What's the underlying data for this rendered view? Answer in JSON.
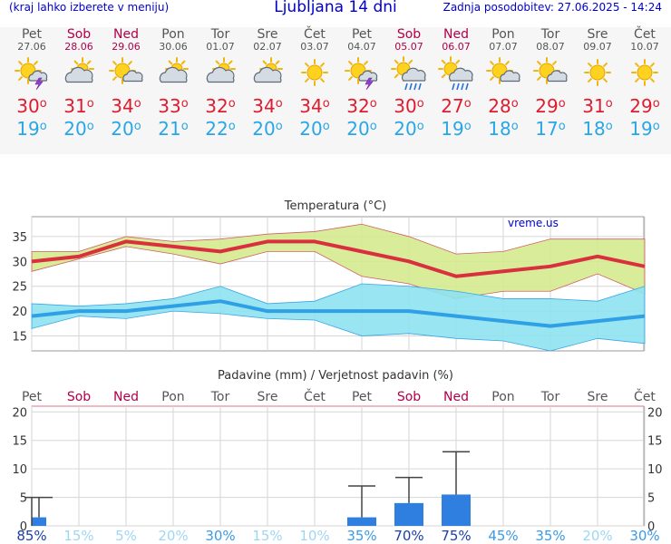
{
  "header": {
    "hint": "(kraj lahko izberete v meniju)",
    "title": "Ljubljana 14 dni",
    "updated": "Zadnja posodobitev: 27.06.2025 - 14:24"
  },
  "colors": {
    "weekday": "#555555",
    "weekend": "#b0004a",
    "tmax": "#e01b2e",
    "tmin": "#29a6e6",
    "header_text": "#0000cc",
    "band_max_fill": "#d4ea8e",
    "band_min_fill": "#8ee2ef",
    "precip_bar": "#2f7fe0"
  },
  "days": [
    {
      "name": "Pet",
      "date": "27.06",
      "weekend": false,
      "icon": "sun-cloud-storm-icon",
      "tmax": "30",
      "tmin": "19"
    },
    {
      "name": "Sob",
      "date": "28.06",
      "weekend": true,
      "icon": "cloud-sun-icon",
      "tmax": "31",
      "tmin": "20"
    },
    {
      "name": "Ned",
      "date": "29.06",
      "weekend": true,
      "icon": "sun-cloud-icon",
      "tmax": "34",
      "tmin": "20"
    },
    {
      "name": "Pon",
      "date": "30.06",
      "weekend": false,
      "icon": "cloud-sun-icon",
      "tmax": "33",
      "tmin": "21"
    },
    {
      "name": "Tor",
      "date": "01.07",
      "weekend": false,
      "icon": "cloud-sun-icon",
      "tmax": "32",
      "tmin": "22"
    },
    {
      "name": "Sre",
      "date": "02.07",
      "weekend": false,
      "icon": "cloud-sun-icon",
      "tmax": "34",
      "tmin": "20"
    },
    {
      "name": "Čet",
      "date": "03.07",
      "weekend": false,
      "icon": "sun-icon",
      "tmax": "34",
      "tmin": "20"
    },
    {
      "name": "Pet",
      "date": "04.07",
      "weekend": false,
      "icon": "sun-cloud-storm-icon",
      "tmax": "32",
      "tmin": "20"
    },
    {
      "name": "Sob",
      "date": "05.07",
      "weekend": true,
      "icon": "sun-cloud-rain-icon",
      "tmax": "30",
      "tmin": "20"
    },
    {
      "name": "Ned",
      "date": "06.07",
      "weekend": true,
      "icon": "sun-cloud-rain-icon",
      "tmax": "27",
      "tmin": "19"
    },
    {
      "name": "Pon",
      "date": "07.07",
      "weekend": false,
      "icon": "sun-cloud-icon",
      "tmax": "28",
      "tmin": "18"
    },
    {
      "name": "Tor",
      "date": "08.07",
      "weekend": false,
      "icon": "sun-cloud-icon",
      "tmax": "29",
      "tmin": "17"
    },
    {
      "name": "Sre",
      "date": "09.07",
      "weekend": false,
      "icon": "sun-icon",
      "tmax": "31",
      "tmin": "18"
    },
    {
      "name": "Čet",
      "date": "10.07",
      "weekend": false,
      "icon": "sun-icon",
      "tmax": "29",
      "tmin": "19"
    }
  ],
  "temp_chart": {
    "title": "Temperatura (°C)",
    "watermark": "vreme.us"
  },
  "precip_chart": {
    "title": "Padavine (mm) / Verjetnost padavin (%)"
  },
  "chart_data": [
    {
      "type": "area",
      "title": "Temperatura (°C)",
      "categories": [
        "Pet",
        "Sob",
        "Ned",
        "Pon",
        "Tor",
        "Sre",
        "Čet",
        "Pet",
        "Sob",
        "Ned",
        "Pon",
        "Tor",
        "Sre",
        "Čet"
      ],
      "ylim": [
        12,
        39
      ],
      "yticks": [
        15,
        20,
        25,
        30,
        35
      ],
      "grid": true,
      "series": [
        {
          "values": [
            30,
            31,
            34,
            33,
            32,
            34,
            34,
            32,
            30,
            27,
            28,
            29,
            31,
            29
          ]
        },
        {
          "values": [
            32,
            32,
            35,
            34,
            34.5,
            35.5,
            36,
            37.5,
            35,
            31.5,
            32,
            34.5,
            34.5,
            34.5
          ]
        },
        {
          "values": [
            28,
            30.5,
            33,
            31.5,
            29.5,
            32,
            32,
            27,
            25.5,
            22.5,
            24,
            24,
            27.5,
            23.5
          ]
        },
        {
          "values": [
            19,
            20,
            20,
            21,
            22,
            20,
            20,
            20,
            20,
            19,
            18,
            17,
            18,
            19
          ]
        },
        {
          "values": [
            21.5,
            21,
            21.5,
            22.5,
            25,
            21.5,
            22,
            25.5,
            25,
            24,
            22.5,
            22.5,
            22,
            25
          ]
        },
        {
          "values": [
            16.5,
            19,
            18.5,
            20,
            19.5,
            18.5,
            18.2,
            15,
            15.5,
            14.5,
            14,
            12,
            14.5,
            13.5
          ]
        }
      ]
    },
    {
      "type": "bar",
      "title": "Padavine (mm) / Verjetnost padavin (%)",
      "categories": [
        "Pet",
        "Sob",
        "Ned",
        "Pon",
        "Tor",
        "Sre",
        "Čet",
        "Pet",
        "Sob",
        "Ned",
        "Pon",
        "Tor",
        "Sre",
        "Čet"
      ],
      "ylim": [
        0,
        21
      ],
      "yticks": [
        0,
        5,
        10,
        15,
        20
      ],
      "grid": true,
      "series": [
        {
          "values": [
            1.5,
            0,
            0,
            0,
            0,
            0,
            0,
            1.5,
            4,
            5.5,
            0,
            0,
            0,
            0
          ]
        },
        {
          "values": [
            5,
            0,
            0,
            0,
            0,
            0,
            0,
            7,
            8.5,
            13,
            0,
            0,
            0,
            0
          ]
        }
      ],
      "probabilities": [
        "85%",
        "15%",
        "5%",
        "20%",
        "30%",
        "15%",
        "10%",
        "35%",
        "70%",
        "75%",
        "45%",
        "35%",
        "20%",
        "30%"
      ]
    }
  ]
}
